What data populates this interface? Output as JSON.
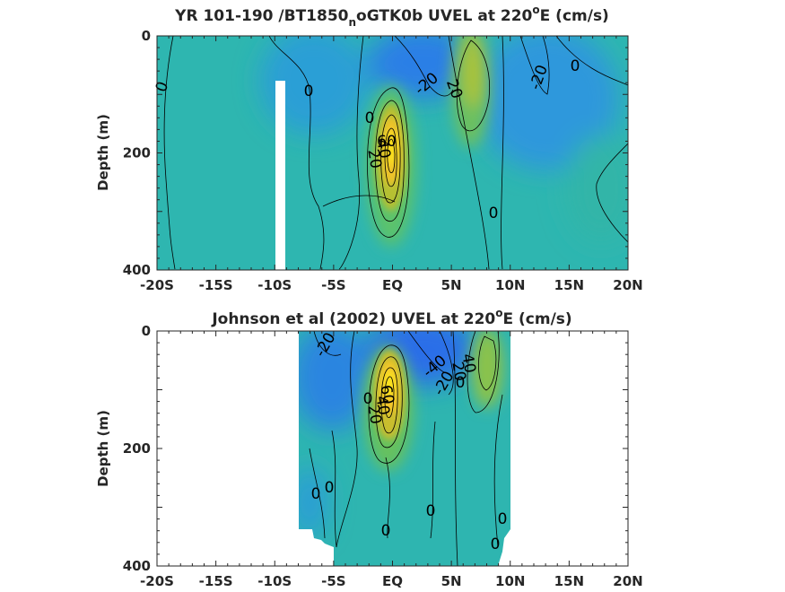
{
  "colors": {
    "background": "#ffffff",
    "frame": "#262626",
    "contour_line": "#000000",
    "colormap": "parula"
  },
  "chart_data": [
    {
      "type": "heatmap",
      "title_parts": [
        "YR 101-190 /BT1850",
        "n",
        "oGTK0b UVEL at 220",
        "o",
        "E (cm/s)"
      ],
      "ylabel": "Depth (m)",
      "xlim": [
        -20,
        20
      ],
      "ylim": [
        0,
        400
      ],
      "y_reversed": true,
      "x_ticks": [
        -20,
        -15,
        -10,
        -5,
        0,
        5,
        10,
        15,
        20
      ],
      "x_tick_labels": [
        "-20S",
        "-15S",
        "-10S",
        "-5S",
        "EQ",
        "5N",
        "10N",
        "15N",
        "20N"
      ],
      "y_tick_labels": [
        "0",
        "200",
        "400"
      ],
      "y_ticks": [
        0,
        200,
        400
      ],
      "contour_labels": [
        "0",
        "0",
        "0",
        "-20",
        "20",
        "-20",
        "0",
        "0",
        "20",
        "40",
        "60",
        "60",
        "40",
        "20",
        "0"
      ],
      "features": [
        {
          "kind": "jet",
          "name": "Equatorial Undercurrent core",
          "lat": 0,
          "depth": 190,
          "peak_cm_s": 70
        },
        {
          "kind": "jet",
          "name": "North Equatorial Countercurrent",
          "lat": 6.5,
          "depth": 70,
          "peak_cm_s": 30
        },
        {
          "kind": "westward",
          "lat": 2,
          "depth": 30,
          "value_cm_s": -40
        },
        {
          "kind": "westward",
          "lat": 11,
          "depth": 80,
          "value_cm_s": -25
        }
      ]
    },
    {
      "type": "heatmap",
      "title_parts": [
        "Johnson et al (2002) UVEL at 220",
        "o",
        "E (cm/s)"
      ],
      "ylabel": "Depth (m)",
      "xlim": [
        -20,
        20
      ],
      "ylim": [
        0,
        400
      ],
      "y_reversed": true,
      "data_lat_range": [
        -8,
        10
      ],
      "x_ticks": [
        -20,
        -15,
        -10,
        -5,
        0,
        5,
        10,
        15,
        20
      ],
      "x_tick_labels": [
        "-20S",
        "-15S",
        "-10S",
        "-5S",
        "EQ",
        "5N",
        "10N",
        "15N",
        "20N"
      ],
      "y_tick_labels": [
        "0",
        "200",
        "400"
      ],
      "y_ticks": [
        0,
        200,
        400
      ],
      "contour_labels": [
        "-20",
        "-40",
        "-20",
        "40",
        "20",
        "0",
        "0",
        "20",
        "40",
        "60",
        "0",
        "0",
        "0",
        "0",
        "0",
        "0"
      ],
      "features": [
        {
          "kind": "jet",
          "name": "Equatorial Undercurrent core",
          "lat": 0,
          "depth": 110,
          "peak_cm_s": 90
        },
        {
          "kind": "jet",
          "name": "North Equatorial Countercurrent",
          "lat": 8,
          "depth": 40,
          "peak_cm_s": 40
        },
        {
          "kind": "westward",
          "lat": 3,
          "depth": 30,
          "value_cm_s": -50
        },
        {
          "kind": "westward",
          "lat": -6,
          "depth": 40,
          "value_cm_s": -25
        }
      ]
    }
  ]
}
